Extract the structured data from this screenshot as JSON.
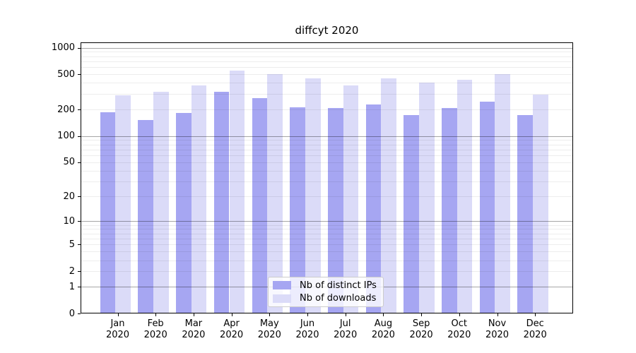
{
  "chart_data": {
    "type": "bar",
    "title": "diffcyt 2020",
    "categories": [
      "Jan 2020",
      "Feb 2020",
      "Mar 2020",
      "Apr 2020",
      "May 2020",
      "Jun 2020",
      "Jul 2020",
      "Aug 2020",
      "Sep 2020",
      "Oct 2020",
      "Nov 2020",
      "Dec 2020"
    ],
    "month_labels": [
      "Jan",
      "Feb",
      "Mar",
      "Apr",
      "May",
      "Jun",
      "Jul",
      "Aug",
      "Sep",
      "Oct",
      "Nov",
      "Dec"
    ],
    "year_label": "2020",
    "series": [
      {
        "name": "Nb of distinct IPs",
        "color": "#a6a6f2",
        "values": [
          186,
          153,
          182,
          316,
          267,
          212,
          208,
          226,
          174,
          206,
          246,
          172
        ]
      },
      {
        "name": "Nb of downloads",
        "color": "#dbdbf8",
        "values": [
          290,
          318,
          372,
          550,
          500,
          452,
          375,
          452,
          402,
          430,
          505,
          296
        ]
      }
    ],
    "y_scale": "log1p",
    "y_ticks": [
      0,
      1,
      2,
      5,
      10,
      20,
      50,
      100,
      200,
      500,
      1000
    ],
    "ylim": [
      0,
      1150
    ],
    "xlabel": "",
    "ylabel": "",
    "grid": {
      "minor_color": "rgba(0,0,0,0.07)",
      "major_color": "rgba(0,0,0,0.35)",
      "major_at": [
        1,
        10,
        100,
        1000
      ],
      "minor_at_multiples": [
        2,
        3,
        4,
        5,
        6,
        7,
        8,
        9
      ]
    },
    "legend_position": "lower-center-inside",
    "background_color": "#ffffff"
  }
}
